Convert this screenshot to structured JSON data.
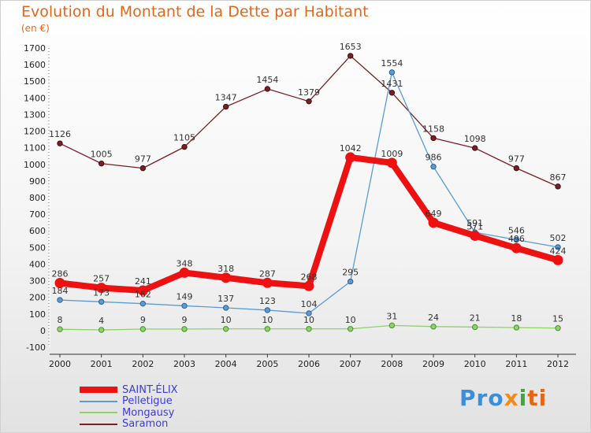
{
  "title": "Evolution du Montant de la Dette par Habitant",
  "subtitle": "(en €)",
  "logo": {
    "parts": [
      "Pro",
      "x",
      "i",
      "ti"
    ]
  },
  "chart_data": {
    "type": "line",
    "categories": [
      "2000",
      "2001",
      "2002",
      "2003",
      "2004",
      "2005",
      "2006",
      "2007",
      "2008",
      "2009",
      "2010",
      "2011",
      "2012"
    ],
    "ylim": [
      -100,
      1700
    ],
    "yticks": [
      -100,
      0,
      100,
      200,
      300,
      400,
      500,
      600,
      700,
      800,
      900,
      1000,
      1100,
      1200,
      1300,
      1400,
      1500,
      1600,
      1700
    ],
    "grid": false,
    "legend_position": "bottom-left",
    "series": [
      {
        "name": "SAINT-ÉLIX",
        "color": "#ee1111",
        "values": [
          286,
          257,
          241,
          348,
          318,
          287,
          268,
          1042,
          1009,
          649,
          571,
          496,
          424
        ]
      },
      {
        "name": "Pelletigue",
        "color": "#5a9bd5",
        "values": [
          184,
          173,
          162,
          149,
          137,
          123,
          104,
          295,
          1554,
          986,
          591,
          546,
          502
        ]
      },
      {
        "name": "Mongausy",
        "color": "#8fd16a",
        "values": [
          8,
          4,
          9,
          9,
          10,
          10,
          10,
          10,
          31,
          24,
          21,
          18,
          15
        ]
      },
      {
        "name": "Saramon",
        "color": "#7a1f24",
        "values": [
          1126,
          1005,
          977,
          1105,
          1347,
          1454,
          1379,
          1653,
          1431,
          1158,
          1098,
          977,
          867
        ]
      }
    ]
  }
}
